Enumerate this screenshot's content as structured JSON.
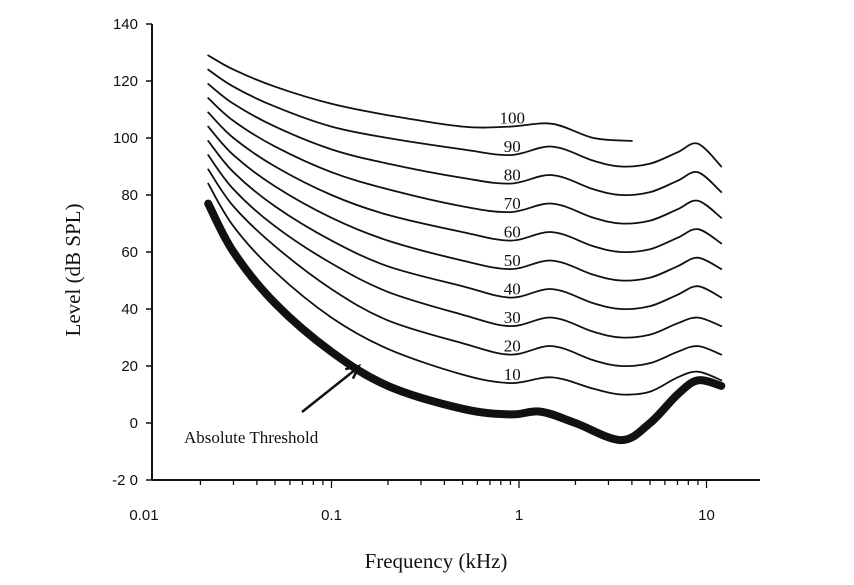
{
  "chart_data": {
    "type": "line",
    "xlabel": "Frequency (kHz)",
    "ylabel": "Level (dB SPL)",
    "x_scale": "log",
    "xlim": [
      0.01,
      12
    ],
    "ylim": [
      -20,
      140
    ],
    "x_ticks": [
      0.01,
      0.1,
      1,
      10
    ],
    "x_tick_labels": [
      "0.01",
      "0.1",
      "1",
      "10"
    ],
    "y_ticks": [
      -20,
      0,
      20,
      40,
      60,
      80,
      100,
      120,
      140
    ],
    "y_tick_labels": [
      "-2 0",
      "0",
      "20",
      "40",
      "60",
      "80",
      "100",
      "120",
      "140"
    ],
    "grid": false,
    "legend": "none",
    "series": [
      {
        "name": "Absolute Threshold",
        "x": [
          0.022,
          0.03,
          0.05,
          0.1,
          0.2,
          0.5,
          0.9,
          1.3,
          2,
          3.5,
          5,
          7,
          9,
          12
        ],
        "y": [
          77,
          60,
          42,
          25,
          13,
          5,
          3,
          4,
          0,
          -6,
          0,
          10,
          15,
          13
        ]
      },
      {
        "name": "10",
        "x": [
          0.022,
          0.03,
          0.05,
          0.1,
          0.2,
          0.5,
          0.9,
          1.5,
          2.5,
          3.5,
          5,
          7,
          9,
          12
        ],
        "y": [
          84,
          69,
          53,
          37,
          26,
          17,
          14,
          16,
          12,
          10,
          11,
          16,
          18,
          15
        ]
      },
      {
        "name": "20",
        "x": [
          0.022,
          0.03,
          0.05,
          0.1,
          0.2,
          0.5,
          0.9,
          1.5,
          2.5,
          3.5,
          5,
          7,
          9,
          12
        ],
        "y": [
          89,
          76,
          62,
          47,
          36,
          28,
          24,
          27,
          22,
          20,
          21,
          25,
          27,
          24
        ]
      },
      {
        "name": "30",
        "x": [
          0.022,
          0.03,
          0.05,
          0.1,
          0.2,
          0.5,
          0.9,
          1.5,
          2.5,
          3.5,
          5,
          7,
          9,
          12
        ],
        "y": [
          94,
          82,
          69,
          56,
          46,
          38,
          34,
          37,
          32,
          30,
          31,
          35,
          37,
          34
        ]
      },
      {
        "name": "40",
        "x": [
          0.022,
          0.03,
          0.05,
          0.1,
          0.2,
          0.5,
          0.9,
          1.5,
          2.5,
          3.5,
          5,
          7,
          9,
          12
        ],
        "y": [
          99,
          88,
          76,
          64,
          55,
          48,
          44,
          47,
          42,
          40,
          41,
          45,
          48,
          44
        ]
      },
      {
        "name": "50",
        "x": [
          0.022,
          0.03,
          0.05,
          0.1,
          0.2,
          0.5,
          0.9,
          1.5,
          2.5,
          3.5,
          5,
          7,
          9,
          12
        ],
        "y": [
          104,
          94,
          83,
          72,
          64,
          57,
          54,
          57,
          52,
          50,
          51,
          55,
          58,
          54
        ]
      },
      {
        "name": "60",
        "x": [
          0.022,
          0.03,
          0.05,
          0.1,
          0.2,
          0.5,
          0.9,
          1.5,
          2.5,
          3.5,
          5,
          7,
          9,
          12
        ],
        "y": [
          109,
          100,
          90,
          80,
          73,
          67,
          64,
          67,
          62,
          60,
          61,
          65,
          68,
          63
        ]
      },
      {
        "name": "70",
        "x": [
          0.022,
          0.03,
          0.05,
          0.1,
          0.2,
          0.5,
          0.9,
          1.5,
          2.5,
          3.5,
          5,
          7,
          9,
          12
        ],
        "y": [
          114,
          106,
          97,
          88,
          82,
          76,
          74,
          77,
          72,
          70,
          71,
          75,
          78,
          72
        ]
      },
      {
        "name": "80",
        "x": [
          0.022,
          0.03,
          0.05,
          0.1,
          0.2,
          0.5,
          0.9,
          1.5,
          2.5,
          3.5,
          5,
          7,
          9,
          12
        ],
        "y": [
          119,
          112,
          104,
          96,
          91,
          86,
          84,
          87,
          82,
          80,
          81,
          85,
          88,
          81
        ]
      },
      {
        "name": "90",
        "x": [
          0.022,
          0.03,
          0.05,
          0.1,
          0.2,
          0.5,
          0.9,
          1.5,
          2.5,
          3.5,
          5,
          7,
          9,
          12
        ],
        "y": [
          124,
          118,
          111,
          104,
          100,
          96,
          94,
          97,
          92,
          90,
          91,
          95,
          98,
          90
        ]
      },
      {
        "name": "100",
        "x": [
          0.022,
          0.03,
          0.05,
          0.1,
          0.2,
          0.5,
          0.9,
          1.5,
          2.5,
          4
        ],
        "y": [
          129,
          124,
          118,
          112,
          108,
          104,
          104,
          105,
          100,
          99
        ]
      }
    ],
    "annotations": [
      {
        "text": "Absolute Threshold",
        "points_to": {
          "x": 0.14,
          "y": 20
        }
      }
    ]
  }
}
